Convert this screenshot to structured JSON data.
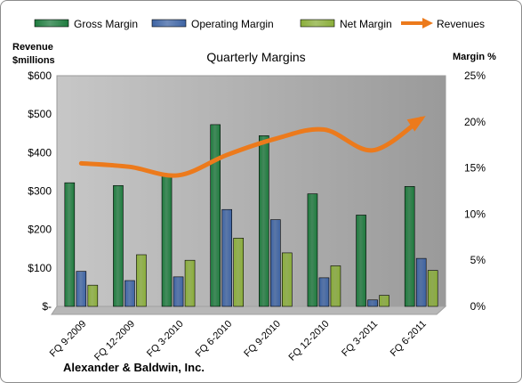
{
  "chart_data": {
    "type": "bar",
    "title": "Quarterly Margins",
    "subtitle": "Alexander & Baldwin, Inc.",
    "left_axis_label": [
      "Revenue",
      "$millions"
    ],
    "right_axis_label": "Margin %",
    "categories": [
      "FQ 9-2009",
      "FQ 12-2009",
      "FQ 3-2010",
      "FQ 6-2010",
      "FQ 9-2010",
      "FQ 12-2010",
      "FQ 3-2011",
      "FQ 6-2011"
    ],
    "left_ticks": [
      "$-",
      "$100",
      "$200",
      "$300",
      "$400",
      "$500",
      "$600"
    ],
    "right_ticks": [
      "0%",
      "5%",
      "10%",
      "15%",
      "20%",
      "25%"
    ],
    "ylim_left": [
      0,
      600
    ],
    "ylim_right": [
      0,
      25
    ],
    "grid": false,
    "legend_position": "top",
    "series": [
      {
        "name": "Gross Margin",
        "axis": "right",
        "kind": "bar",
        "color": "#1e7b3e",
        "values": [
          13.4,
          13.1,
          14.2,
          19.7,
          18.5,
          12.2,
          9.9,
          13.0
        ]
      },
      {
        "name": "Operating Margin",
        "axis": "right",
        "kind": "bar",
        "color": "#3e64a4",
        "values": [
          3.8,
          2.8,
          3.2,
          10.5,
          9.4,
          3.1,
          0.7,
          5.2
        ]
      },
      {
        "name": "Net Margin",
        "axis": "right",
        "kind": "bar",
        "color": "#8aae3a",
        "values": [
          2.3,
          5.6,
          5.0,
          7.4,
          5.8,
          4.4,
          1.2,
          3.9
        ]
      },
      {
        "name": "Revenues",
        "axis": "left",
        "kind": "line",
        "color": "#ec7a1c",
        "values": [
          372,
          363,
          341,
          394,
          436,
          460,
          406,
          488
        ]
      }
    ]
  }
}
